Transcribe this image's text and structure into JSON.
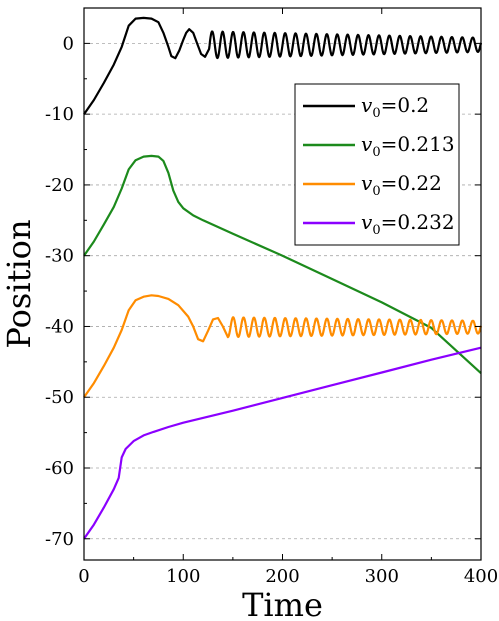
{
  "chart_data": {
    "type": "line",
    "xlabel": "Time",
    "ylabel": "Position",
    "xlim": [
      0,
      400
    ],
    "ylim": [
      -73,
      5
    ],
    "xticks": [
      0,
      100,
      200,
      300,
      400
    ],
    "yticks": [
      0,
      -10,
      -20,
      -30,
      -40,
      -50,
      -60,
      -70
    ],
    "grid": "horizontal dashed",
    "legend_position": "upper-right",
    "series": [
      {
        "name": "v0=0.2",
        "color": "#000000",
        "points": [
          [
            0,
            -10
          ],
          [
            10,
            -8
          ],
          [
            20,
            -5.6
          ],
          [
            30,
            -3
          ],
          [
            38,
            -0.5
          ],
          [
            45,
            2.5
          ],
          [
            52,
            3.5
          ],
          [
            60,
            3.6
          ],
          [
            68,
            3.5
          ],
          [
            75,
            3
          ],
          [
            80,
            1.5
          ],
          [
            85,
            -0.5
          ],
          [
            88,
            -1.8
          ],
          [
            92,
            -2.1
          ],
          [
            96,
            -1
          ],
          [
            100,
            0.5
          ],
          [
            103,
            1.5
          ],
          [
            106,
            2
          ],
          [
            110,
            1.5
          ],
          [
            114,
            0
          ],
          [
            118,
            -1.5
          ],
          [
            122,
            -1.9
          ],
          [
            126,
            -0.8
          ]
        ],
        "tail_osc": {
          "x_start": 126,
          "x_end": 400,
          "center": -0.2,
          "amp_start": 1.9,
          "amp_end": 1.0,
          "period": 10.5,
          "phase_start": "rising"
        }
      },
      {
        "name": "v0=0.213",
        "color": "#1c8a1c",
        "points": [
          [
            0,
            -30
          ],
          [
            10,
            -28
          ],
          [
            20,
            -25.6
          ],
          [
            30,
            -23.1
          ],
          [
            38,
            -20.5
          ],
          [
            45,
            -17.8
          ],
          [
            52,
            -16.5
          ],
          [
            60,
            -16
          ],
          [
            68,
            -15.9
          ],
          [
            75,
            -16
          ],
          [
            80,
            -16.6
          ],
          [
            85,
            -18.3
          ],
          [
            90,
            -20.8
          ],
          [
            95,
            -22.4
          ],
          [
            100,
            -23.3
          ],
          [
            110,
            -24.3
          ],
          [
            120,
            -25
          ],
          [
            150,
            -26.9
          ],
          [
            200,
            -30
          ],
          [
            250,
            -33.3
          ],
          [
            300,
            -36.6
          ],
          [
            350,
            -40.2
          ],
          [
            400,
            -46.6
          ]
        ]
      },
      {
        "name": "v0=0.22",
        "color": "#ff8c00",
        "points": [
          [
            0,
            -50
          ],
          [
            10,
            -48
          ],
          [
            20,
            -45.6
          ],
          [
            30,
            -43
          ],
          [
            38,
            -40.5
          ],
          [
            45,
            -37.7
          ],
          [
            52,
            -36.3
          ],
          [
            60,
            -35.8
          ],
          [
            68,
            -35.6
          ],
          [
            75,
            -35.7
          ],
          [
            85,
            -36.1
          ],
          [
            95,
            -37
          ],
          [
            105,
            -38.6
          ],
          [
            110,
            -40
          ],
          [
            115,
            -41.8
          ],
          [
            120,
            -42.1
          ],
          [
            125,
            -40.6
          ],
          [
            130,
            -39
          ],
          [
            135,
            -38.8
          ],
          [
            140,
            -40
          ],
          [
            145,
            -41.5
          ]
        ],
        "tail_osc": {
          "x_start": 145,
          "x_end": 400,
          "center": -40.1,
          "amp_start": 1.4,
          "amp_end": 0.9,
          "period": 10.5,
          "phase_start": "rising"
        }
      },
      {
        "name": "v0=0.232",
        "color": "#8b00ff",
        "points": [
          [
            0,
            -70
          ],
          [
            10,
            -68
          ],
          [
            20,
            -65.6
          ],
          [
            30,
            -63
          ],
          [
            35,
            -61.4
          ],
          [
            38,
            -58.5
          ],
          [
            42,
            -57.3
          ],
          [
            50,
            -56.2
          ],
          [
            60,
            -55.4
          ],
          [
            70,
            -54.9
          ],
          [
            85,
            -54.2
          ],
          [
            100,
            -53.6
          ],
          [
            150,
            -51.9
          ],
          [
            200,
            -50.1
          ],
          [
            250,
            -48.3
          ],
          [
            300,
            -46.5
          ],
          [
            350,
            -44.7
          ],
          [
            400,
            -43
          ]
        ]
      }
    ]
  },
  "legend": {
    "items": [
      {
        "symbol": "v",
        "sub": "0",
        "value": "=0.2",
        "color": "#000000"
      },
      {
        "symbol": "v",
        "sub": "0",
        "value": "=0.213",
        "color": "#1c8a1c"
      },
      {
        "symbol": "v",
        "sub": "0",
        "value": "=0.22",
        "color": "#ff8c00"
      },
      {
        "symbol": "v",
        "sub": "0",
        "value": "=0.232",
        "color": "#8b00ff"
      }
    ]
  }
}
